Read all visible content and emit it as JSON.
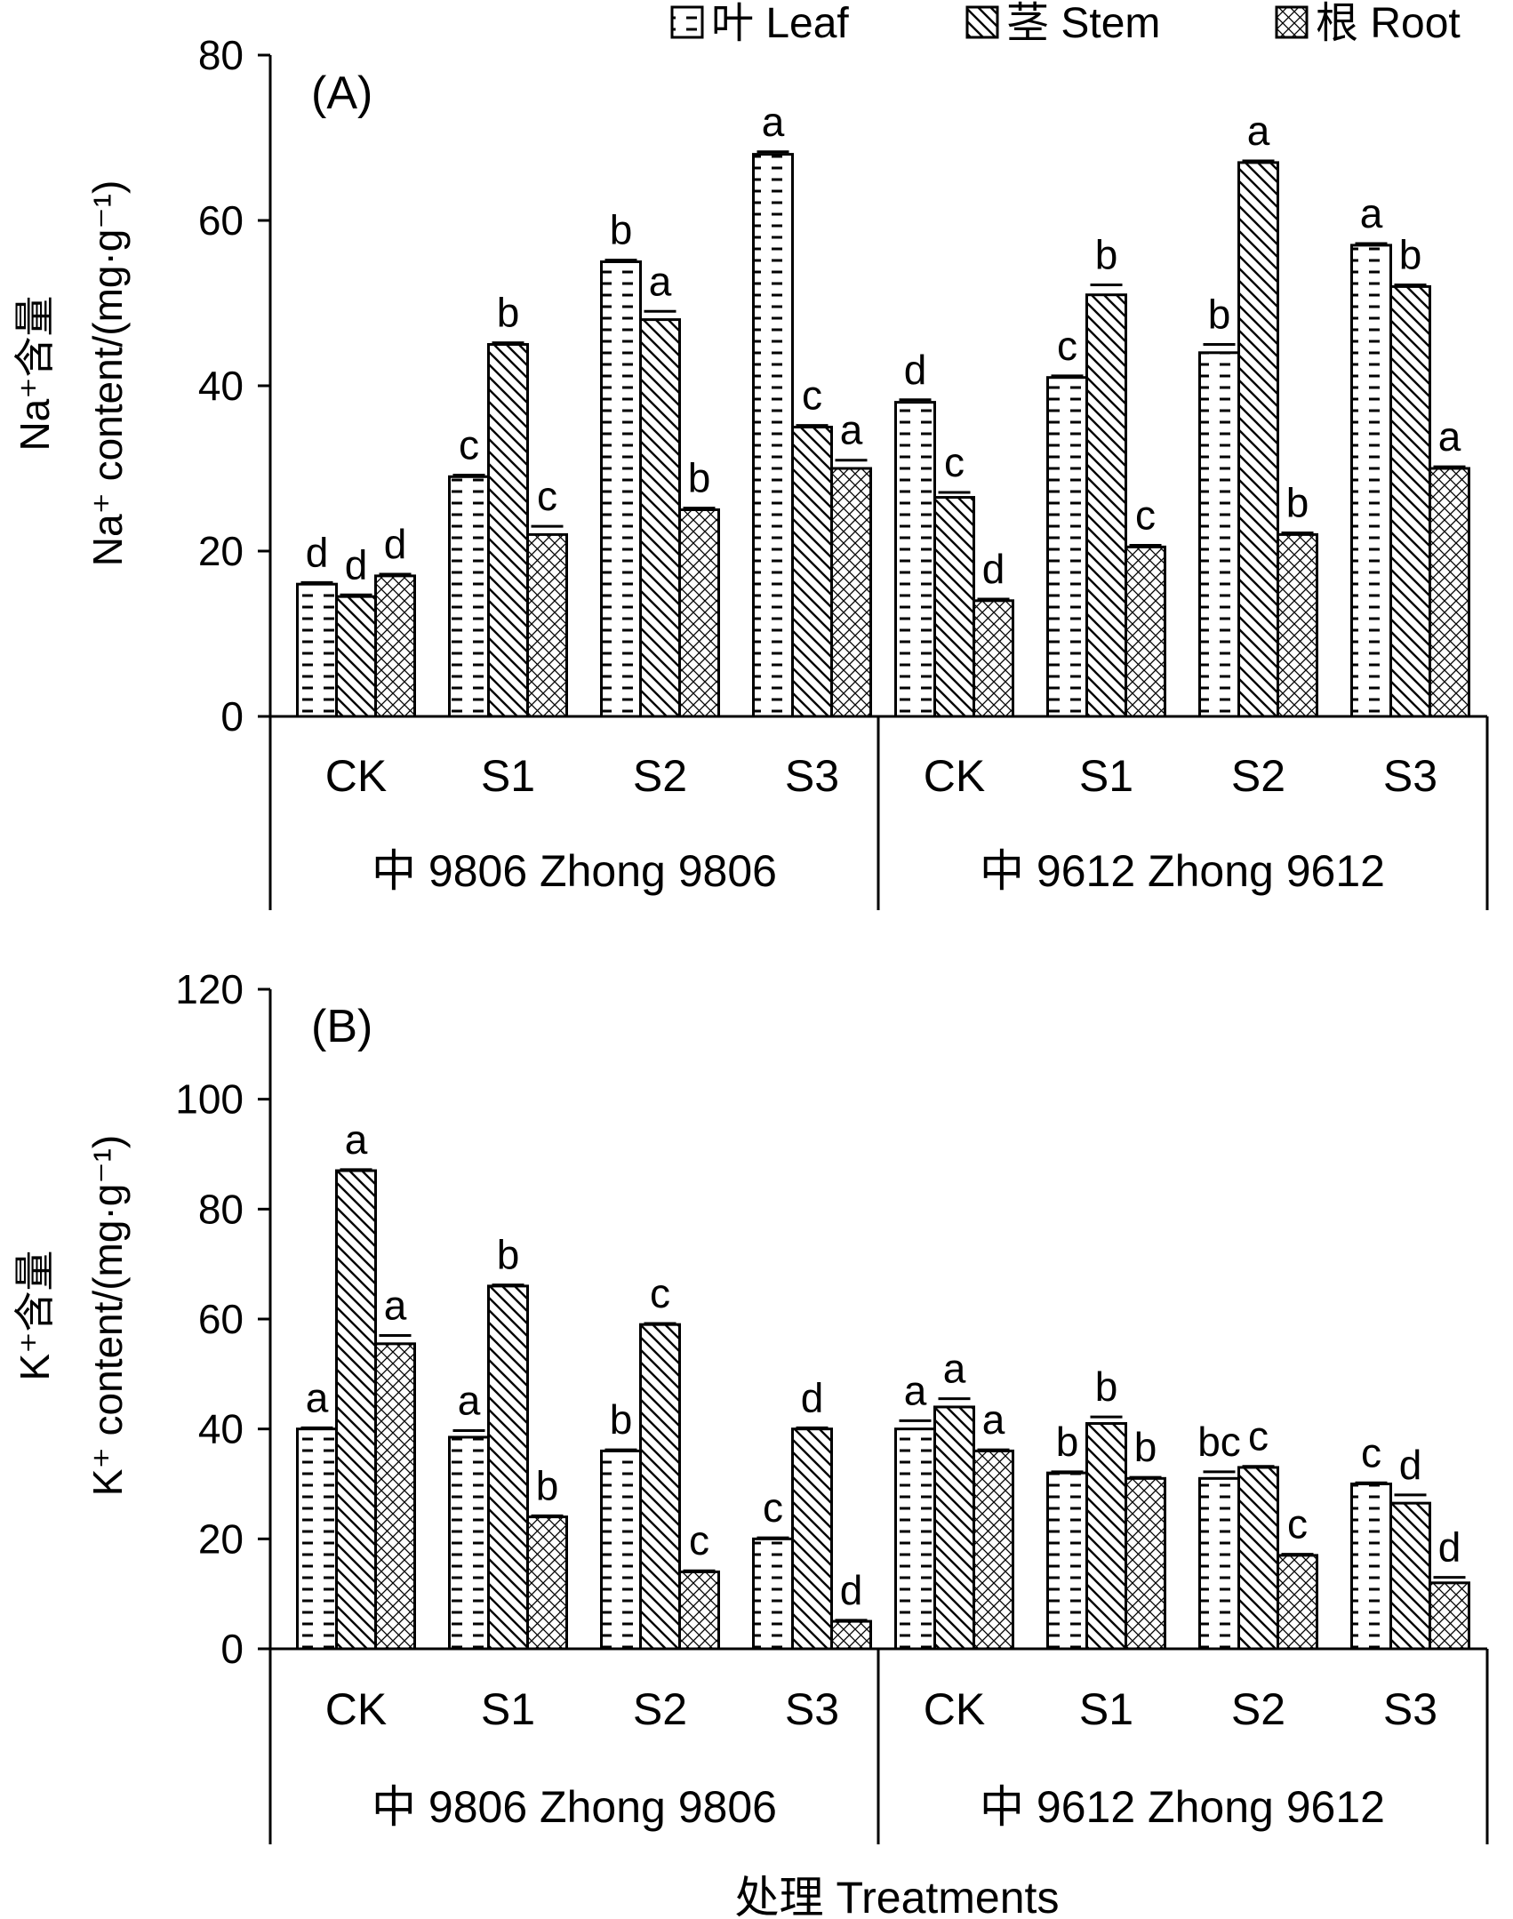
{
  "legend": [
    {
      "key": "leaf",
      "label": "叶 Leaf",
      "pattern": "dashes"
    },
    {
      "key": "stem",
      "label": "茎 Stem",
      "pattern": "diagonal-hatch"
    },
    {
      "key": "root",
      "label": "根 Root",
      "pattern": "crosshatch"
    }
  ],
  "xlabel": "处理 Treatments",
  "chart_data": [
    {
      "type": "bar",
      "panel_label": "(A)",
      "ylabel_cn": "Na⁺含量",
      "ylabel_en": "Na⁺ content/(mg·g⁻¹)",
      "ylim": [
        0,
        80
      ],
      "yticks": [
        0,
        20,
        40,
        60,
        80
      ],
      "categories": [
        "CK",
        "S1",
        "S2",
        "S3",
        "CK",
        "S1",
        "S2",
        "S3"
      ],
      "groups": [
        "中 9806 Zhong 9806",
        "中 9612 Zhong 9612"
      ],
      "series": [
        {
          "name": "叶 Leaf",
          "values": [
            16,
            29,
            55,
            68,
            38,
            41,
            44,
            57
          ],
          "errors": [
            0.2,
            0.2,
            0.2,
            0.3,
            0.3,
            0.2,
            1.0,
            0.2
          ],
          "letters": [
            "d",
            "c",
            "b",
            "a",
            "d",
            "c",
            "b",
            "a"
          ]
        },
        {
          "name": "茎 Stem",
          "values": [
            14.5,
            45,
            48,
            35,
            26.5,
            51,
            67,
            52
          ],
          "errors": [
            0.2,
            0.2,
            1.0,
            0.2,
            0.6,
            1.2,
            0.2,
            0.2
          ],
          "letters": [
            "d",
            "b",
            "a",
            "c",
            "c",
            "b",
            "a",
            "b"
          ]
        },
        {
          "name": "根 Root",
          "values": [
            17,
            22,
            25,
            30,
            14,
            20.5,
            22,
            30
          ],
          "errors": [
            0.2,
            1.0,
            0.2,
            1.0,
            0.2,
            0.2,
            0.2,
            0.2
          ],
          "letters": [
            "d",
            "c",
            "b",
            "a",
            "d",
            "c",
            "b",
            "a"
          ]
        }
      ]
    },
    {
      "type": "bar",
      "panel_label": "(B)",
      "ylabel_cn": "K⁺含量",
      "ylabel_en": "K⁺ content/(mg·g⁻¹)",
      "ylim": [
        0,
        120
      ],
      "yticks": [
        0,
        20,
        40,
        60,
        80,
        100,
        120
      ],
      "categories": [
        "CK",
        "S1",
        "S2",
        "S3",
        "CK",
        "S1",
        "S2",
        "S3"
      ],
      "groups": [
        "中 9806 Zhong 9806",
        "中 9612 Zhong 9612"
      ],
      "series": [
        {
          "name": "叶 Leaf",
          "values": [
            40,
            38.5,
            36,
            20,
            40,
            32,
            31,
            30
          ],
          "errors": [
            0.2,
            1.2,
            0.2,
            0.2,
            1.5,
            0.2,
            1.2,
            0.2
          ],
          "letters": [
            "a",
            "a",
            "b",
            "c",
            "a",
            "b",
            "bc",
            "c"
          ]
        },
        {
          "name": "茎 Stem",
          "values": [
            87,
            66,
            59,
            40,
            44,
            41,
            33,
            26.5
          ],
          "errors": [
            0.2,
            0.2,
            0.2,
            0.2,
            1.5,
            1.2,
            0.2,
            1.5
          ],
          "letters": [
            "a",
            "b",
            "c",
            "d",
            "a",
            "b",
            "c",
            "d"
          ]
        },
        {
          "name": "根 Root",
          "values": [
            55.5,
            24,
            14,
            5,
            36,
            31,
            17,
            12
          ],
          "errors": [
            1.5,
            0.2,
            0.2,
            0.2,
            0.2,
            0.2,
            0.2,
            1.0
          ],
          "letters": [
            "a",
            "b",
            "c",
            "d",
            "a",
            "b",
            "c",
            "d"
          ]
        }
      ]
    }
  ]
}
